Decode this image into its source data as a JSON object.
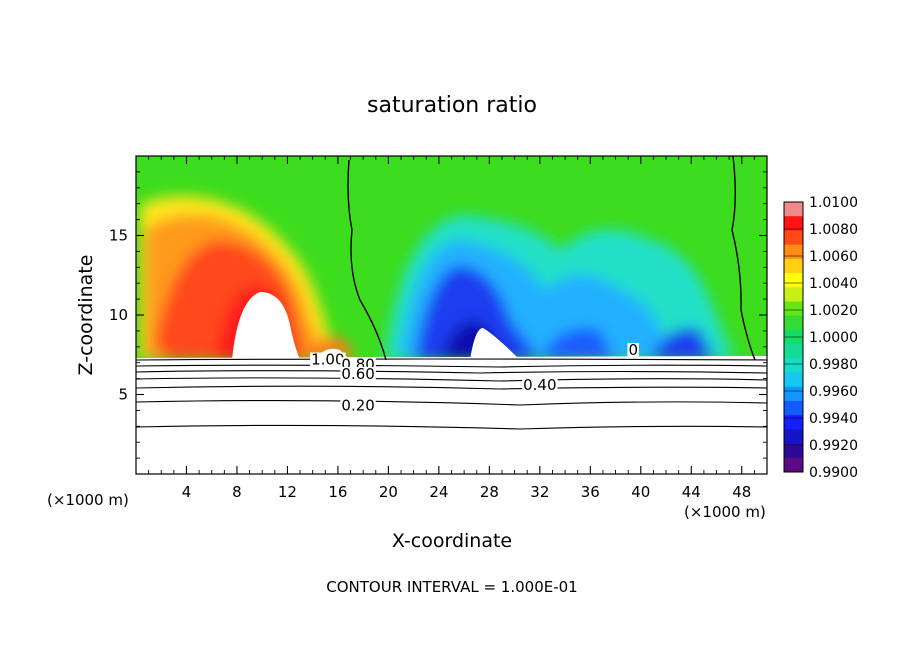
{
  "chart_data": {
    "type": "contour",
    "title": "saturation ratio",
    "xlabel": "X-coordinate",
    "ylabel": "Z-coordinate",
    "x_unit": "(×1000 m)",
    "x_unit_right": "(×1000 m)",
    "footer": "CONTOUR INTERVAL = 1.000E-01",
    "xlim": [
      0,
      50
    ],
    "ylim": [
      0,
      20
    ],
    "xticks": [
      4,
      8,
      12,
      16,
      20,
      24,
      28,
      32,
      36,
      40,
      44,
      48
    ],
    "xtick_labels": [
      "4",
      "8",
      "12",
      "16",
      "20",
      "24",
      "28",
      "32",
      "36",
      "40",
      "44",
      "48"
    ],
    "yticks": [
      5,
      10,
      15
    ],
    "ytick_labels": [
      "5",
      "10",
      "15"
    ],
    "colorbar": {
      "min": 0.99,
      "max": 1.01,
      "labels": [
        "1.0100",
        "1.0080",
        "1.0060",
        "1.0040",
        "1.0020",
        "1.0000",
        "0.9980",
        "0.9960",
        "0.9940",
        "0.9920",
        "0.9900"
      ]
    },
    "contour_labels": [
      {
        "text": "1.00",
        "x": 15.2,
        "z": 7.2
      },
      {
        "text": "0.80",
        "x": 17.6,
        "z": 6.9
      },
      {
        "text": "0.60",
        "x": 17.6,
        "z": 6.3
      },
      {
        "text": "0.40",
        "x": 32.0,
        "z": 5.6
      },
      {
        "text": "0.20",
        "x": 17.6,
        "z": 4.3
      },
      {
        "text": "0",
        "x": 39.4,
        "z": 7.8
      }
    ],
    "grid": false
  }
}
